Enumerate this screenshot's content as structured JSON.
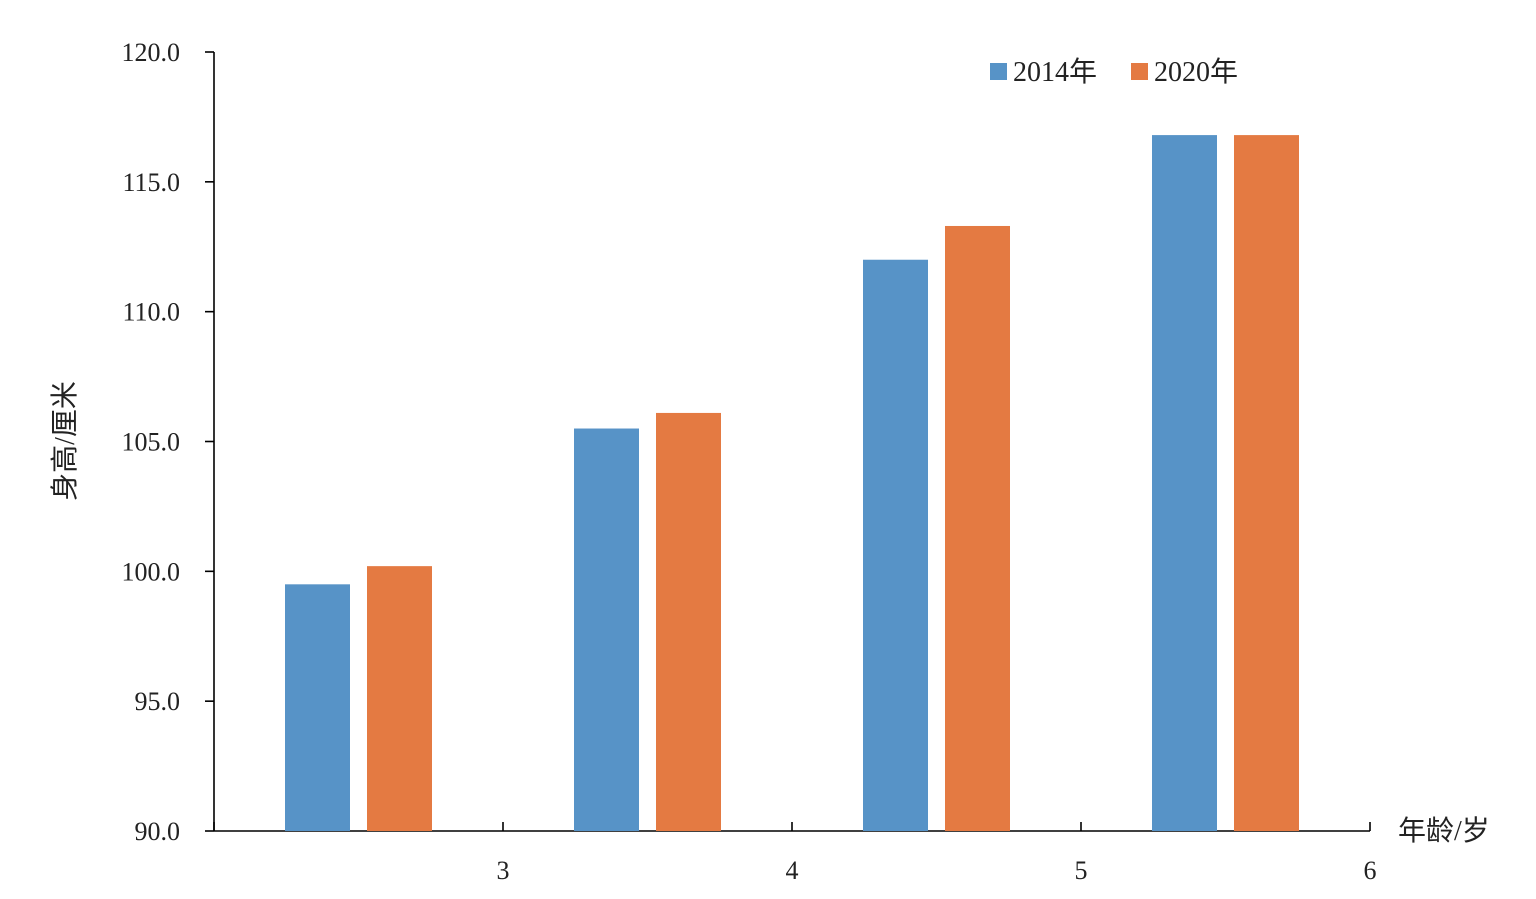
{
  "chart_data": {
    "type": "bar",
    "categories": [
      "",
      "",
      "",
      ""
    ],
    "x_tick_labels": [
      "3",
      "4",
      "5",
      "6"
    ],
    "series": [
      {
        "name": "2014年",
        "color": "#5793c7",
        "values": [
          99.5,
          105.5,
          112.0,
          116.8
        ]
      },
      {
        "name": "2020年",
        "color": "#e47a42",
        "values": [
          100.2,
          106.1,
          113.3,
          116.8
        ]
      }
    ],
    "xlabel": "年龄/岁",
    "ylabel": "身高/厘米",
    "ylim": [
      90.0,
      120.0
    ],
    "y_ticks": [
      "90.0",
      "95.0",
      "100.0",
      "105.0",
      "110.0",
      "115.0",
      "120.0"
    ],
    "grid": false,
    "legend_position": "top-right"
  }
}
